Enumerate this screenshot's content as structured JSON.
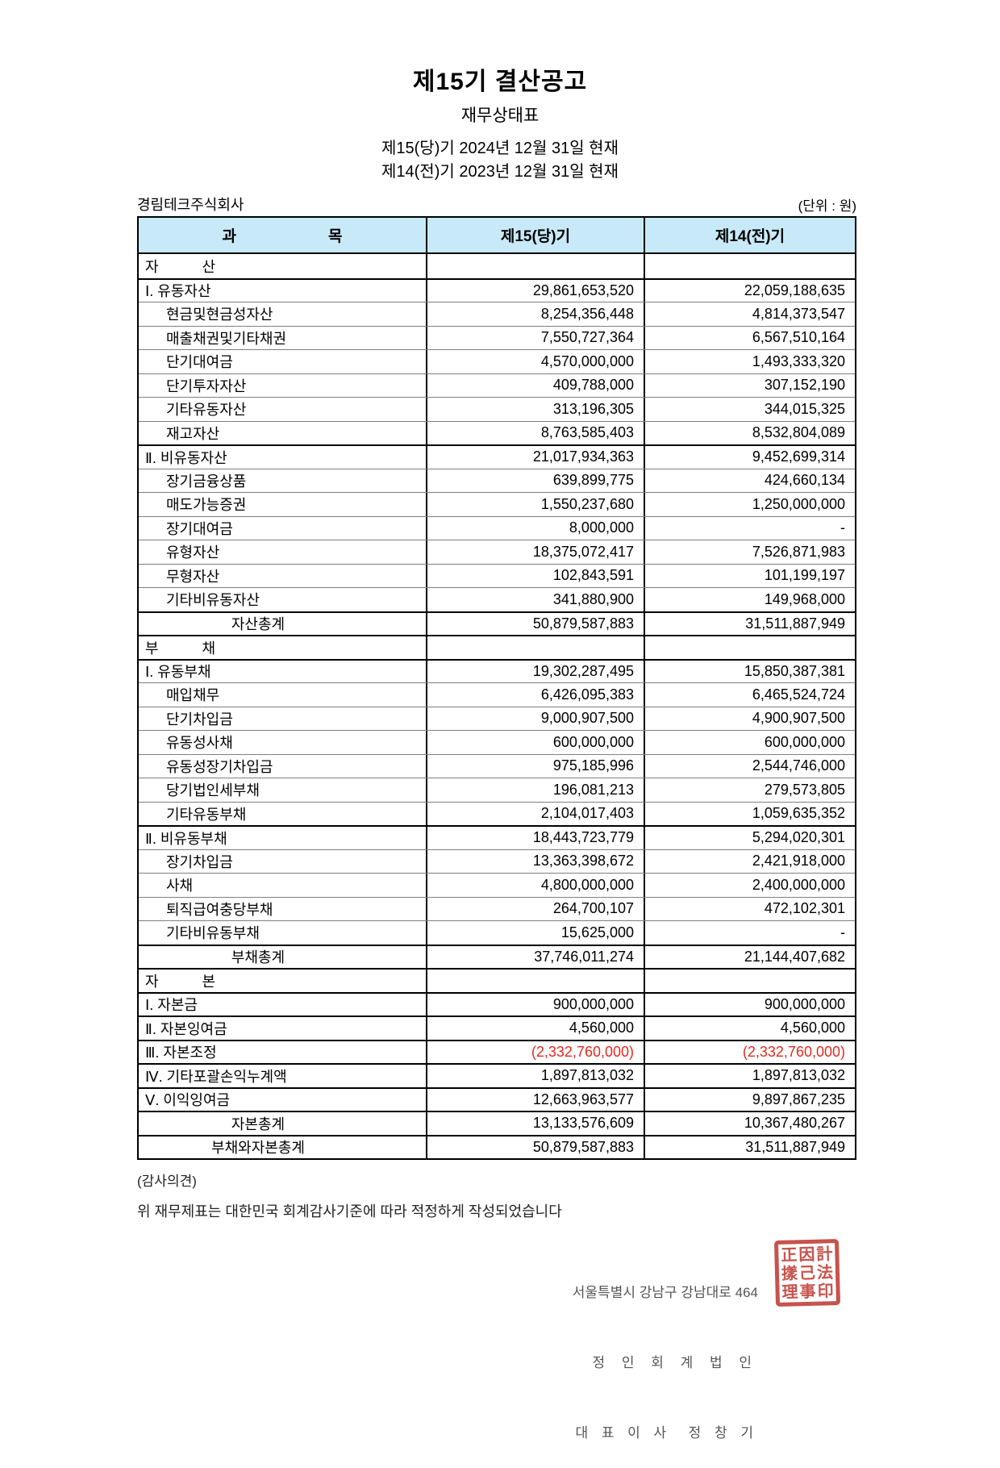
{
  "page": {
    "title": "제15기 결산공고",
    "subtitle": "재무상태표",
    "period_line1": "제15(당)기 2024년 12월 31일 현재",
    "period_line2": "제14(전)기 2023년 12월 31일 현재",
    "company": "경림테크주식회사",
    "unit_note": "(단위 : 원)"
  },
  "colors": {
    "header_bg": "#c8e9f8",
    "negative": "#e8281e",
    "seal": "#c2413a"
  },
  "table": {
    "headers": {
      "account": "과　　　　　　목",
      "current": "제15(당)기",
      "prior": "제14(전)기"
    },
    "rows": [
      {
        "type": "section",
        "label": "자　　　산",
        "v1": "",
        "v2": ""
      },
      {
        "type": "main",
        "label": "Ⅰ. 유동자산",
        "v1": "29,861,653,520",
        "v2": "22,059,188,635"
      },
      {
        "type": "sub",
        "label": "현금및현금성자산",
        "v1": "8,254,356,448",
        "v2": "4,814,373,547"
      },
      {
        "type": "sub",
        "label": "매출채권및기타채권",
        "v1": "7,550,727,364",
        "v2": "6,567,510,164"
      },
      {
        "type": "sub",
        "label": "단기대여금",
        "v1": "4,570,000,000",
        "v2": "1,493,333,320"
      },
      {
        "type": "sub",
        "label": "단기투자자산",
        "v1": "409,788,000",
        "v2": "307,152,190"
      },
      {
        "type": "sub",
        "label": "기타유동자산",
        "v1": "313,196,305",
        "v2": "344,015,325"
      },
      {
        "type": "sub",
        "label": "재고자산",
        "v1": "8,763,585,403",
        "v2": "8,532,804,089"
      },
      {
        "type": "main",
        "label": "Ⅱ. 비유동자산",
        "v1": "21,017,934,363",
        "v2": "9,452,699,314"
      },
      {
        "type": "sub",
        "label": "장기금융상품",
        "v1": "639,899,775",
        "v2": "424,660,134"
      },
      {
        "type": "sub",
        "label": "매도가능증권",
        "v1": "1,550,237,680",
        "v2": "1,250,000,000"
      },
      {
        "type": "sub",
        "label": "장기대여금",
        "v1": "8,000,000",
        "v2": "-"
      },
      {
        "type": "sub",
        "label": "유형자산",
        "v1": "18,375,072,417",
        "v2": "7,526,871,983"
      },
      {
        "type": "sub",
        "label": "무형자산",
        "v1": "102,843,591",
        "v2": "101,199,197"
      },
      {
        "type": "sub",
        "label": "기타비유동자산",
        "v1": "341,880,900",
        "v2": "149,968,000"
      },
      {
        "type": "total",
        "label": "자산총계",
        "v1": "50,879,587,883",
        "v2": "31,511,887,949"
      },
      {
        "type": "section",
        "label": "부　　　채",
        "v1": "",
        "v2": ""
      },
      {
        "type": "main",
        "label": "Ⅰ. 유동부채",
        "v1": "19,302,287,495",
        "v2": "15,850,387,381"
      },
      {
        "type": "sub",
        "label": "매입채무",
        "v1": "6,426,095,383",
        "v2": "6,465,524,724"
      },
      {
        "type": "sub",
        "label": "단기차입금",
        "v1": "9,000,907,500",
        "v2": "4,900,907,500"
      },
      {
        "type": "sub",
        "label": "유동성사채",
        "v1": "600,000,000",
        "v2": "600,000,000"
      },
      {
        "type": "sub",
        "label": "유동성장기차입금",
        "v1": "975,185,996",
        "v2": "2,544,746,000"
      },
      {
        "type": "sub",
        "label": "당기법인세부채",
        "v1": "196,081,213",
        "v2": "279,573,805"
      },
      {
        "type": "sub",
        "label": "기타유동부채",
        "v1": "2,104,017,403",
        "v2": "1,059,635,352"
      },
      {
        "type": "main",
        "label": "Ⅱ. 비유동부채",
        "v1": "18,443,723,779",
        "v2": "5,294,020,301"
      },
      {
        "type": "sub",
        "label": "장기차입금",
        "v1": "13,363,398,672",
        "v2": "2,421,918,000"
      },
      {
        "type": "sub",
        "label": "사채",
        "v1": "4,800,000,000",
        "v2": "2,400,000,000"
      },
      {
        "type": "sub",
        "label": "퇴직급여충당부채",
        "v1": "264,700,107",
        "v2": "472,102,301"
      },
      {
        "type": "sub",
        "label": "기타비유동부채",
        "v1": "15,625,000",
        "v2": "-"
      },
      {
        "type": "total",
        "label": "부채총계",
        "v1": "37,746,011,274",
        "v2": "21,144,407,682"
      },
      {
        "type": "section",
        "label": "자　　　본",
        "v1": "",
        "v2": ""
      },
      {
        "type": "main",
        "label": "Ⅰ. 자본금",
        "v1": "900,000,000",
        "v2": "900,000,000"
      },
      {
        "type": "main",
        "label": "Ⅱ. 자본잉여금",
        "v1": "4,560,000",
        "v2": "4,560,000"
      },
      {
        "type": "main",
        "label": "Ⅲ. 자본조정",
        "v1": "(2,332,760,000)",
        "v2": "(2,332,760,000)",
        "red": true
      },
      {
        "type": "main",
        "label": "Ⅳ. 기타포괄손익누계액",
        "v1": "1,897,813,032",
        "v2": "1,897,813,032"
      },
      {
        "type": "main",
        "label": "Ⅴ. 이익잉여금",
        "v1": "12,663,963,577",
        "v2": "9,897,867,235"
      },
      {
        "type": "total",
        "label": "자본총계",
        "v1": "13,133,576,609",
        "v2": "10,367,480,267"
      },
      {
        "type": "total",
        "label": "부채와자본총계",
        "v1": "50,879,587,883",
        "v2": "31,511,887,949"
      }
    ]
  },
  "footer": {
    "audit_heading": "(감사의견)",
    "audit_text": "위 재무제표는 대한민국 회계감사기준에 따라 적정하게 작성되었습니다",
    "address": "서울특별시 강남구 강남대로 464",
    "firm": "정 인 회 계 법 인",
    "ceo": "대 표 이 사  정 창 기",
    "seal_chars": [
      "正",
      "因",
      "計",
      "㨾",
      "己",
      "法",
      "理",
      "事",
      "印"
    ]
  }
}
